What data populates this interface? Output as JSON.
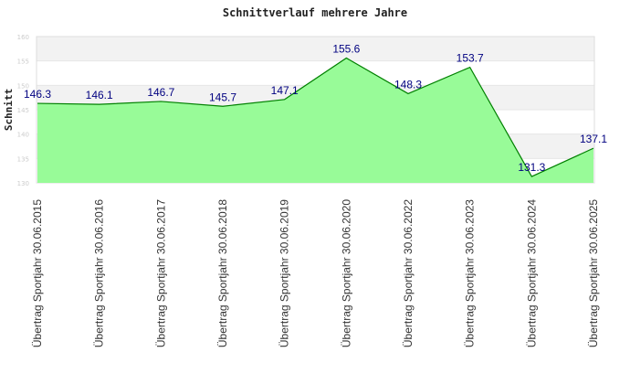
{
  "chart_data": {
    "type": "area",
    "title": "Schnittverlauf mehrere Jahre",
    "ylabel": "Schnitt",
    "xlabel": "",
    "ylim": [
      130,
      160
    ],
    "yticks": [
      130,
      135,
      140,
      145,
      150,
      155,
      160
    ],
    "categories": [
      "Übertrag Sportjahr 30.06.2015",
      "Übertrag Sportjahr 30.06.2016",
      "Übertrag Sportjahr 30.06.2017",
      "Übertrag Sportjahr 30.06.2018",
      "Übertrag Sportjahr 30.06.2019",
      "Übertrag Sportjahr 30.06.2020",
      "Übertrag Sportjahr 30.06.2022",
      "Übertrag Sportjahr 30.06.2023",
      "Übertrag Sportjahr 30.06.2024",
      "Übertrag Sportjahr 30.06.2025"
    ],
    "values": [
      146.3,
      146.1,
      146.7,
      145.7,
      147.1,
      155.6,
      148.3,
      153.7,
      131.3,
      137.1
    ],
    "data_labels": [
      "146.3",
      "146.1",
      "146.7",
      "145.7",
      "147.1",
      "155.6",
      "148.3",
      "153.7",
      "131.3",
      "137.1"
    ],
    "grid": true,
    "colors": {
      "fill": "#98fb98",
      "line": "#008000",
      "band": "#f2f2f2",
      "grid": "#e6e6e6",
      "data_label": "#000080"
    }
  }
}
